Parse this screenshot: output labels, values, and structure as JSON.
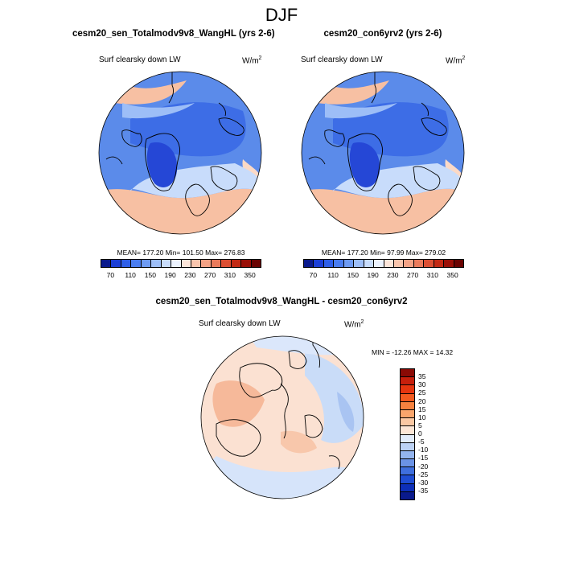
{
  "figure": {
    "title": "DJF"
  },
  "panels": [
    {
      "title": "cesm20_sen_Totalmodv9v8_WangHL (yrs 2-6)",
      "variable": "Surf clearsky down LW",
      "units": "W/m",
      "units_superscript": "2",
      "stats": "MEAN= 177.20  Min= 101.50  Max= 276.83",
      "colorbar_ticks": [
        "70",
        "110",
        "150",
        "190",
        "230",
        "270",
        "310",
        "350"
      ],
      "colorbar_colors": [
        "#0a1a8c",
        "#1c3fd6",
        "#2f5fe8",
        "#4a7df0",
        "#6e9bf3",
        "#9dbef7",
        "#c8dcfb",
        "#ecf3fe",
        "#fde6da",
        "#f9c5ad",
        "#f3a285",
        "#ea7b5c",
        "#dc4f33",
        "#c22914",
        "#9a0f07",
        "#6a0302"
      ]
    },
    {
      "title": "cesm20_con6yrv2 (yrs 2-6)",
      "variable": "Surf clearsky down LW",
      "units": "W/m",
      "units_superscript": "2",
      "stats": "MEAN= 177.20  Min=  97.99  Max= 279.02",
      "colorbar_ticks": [
        "70",
        "110",
        "150",
        "190",
        "230",
        "270",
        "310",
        "350"
      ],
      "colorbar_colors": [
        "#0a1a8c",
        "#1c3fd6",
        "#2f5fe8",
        "#4a7df0",
        "#6e9bf3",
        "#9dbef7",
        "#c8dcfb",
        "#ecf3fe",
        "#fde6da",
        "#f9c5ad",
        "#f3a285",
        "#ea7b5c",
        "#dc4f33",
        "#c22914",
        "#9a0f07",
        "#6a0302"
      ]
    },
    {
      "title": "cesm20_sen_Totalmodv9v8_WangHL - cesm20_con6yrv2",
      "variable": "Surf clearsky down LW",
      "units": "W/m",
      "units_superscript": "2",
      "stats": "MIN = -12.26 MAX =  14.32",
      "colorbar_ticks": [
        "35",
        "30",
        "25",
        "20",
        "15",
        "10",
        "5",
        "0",
        "-5",
        "-10",
        "-15",
        "-20",
        "-25",
        "-30",
        "-35"
      ],
      "colorbar_colors": [
        "#8a0a05",
        "#c61f0c",
        "#e5350f",
        "#f35a1f",
        "#f7823f",
        "#f9a56c",
        "#fbc8a3",
        "#fde6d6",
        "#e2ecfb",
        "#bcd2f5",
        "#93b4ee",
        "#6b93e6",
        "#3f6fde",
        "#1f4dd3",
        "#0d2fb8",
        "#0a1a8c"
      ]
    }
  ],
  "map_fields": {
    "left": {
      "base": "#5b8bea",
      "regions": [
        {
          "color": "#f7c0a3",
          "shape": "rim"
        },
        {
          "color": "#c8dcfb",
          "shape": "atlantic"
        },
        {
          "color": "#3d6de6",
          "shape": "arctic"
        },
        {
          "color": "#2547d6",
          "shape": "greenland"
        }
      ]
    },
    "right": {
      "base": "#5b8bea",
      "regions": [
        {
          "color": "#f7c0a3",
          "shape": "rim"
        },
        {
          "color": "#c8dcfb",
          "shape": "atlantic"
        },
        {
          "color": "#3d6de6",
          "shape": "arctic"
        },
        {
          "color": "#2547d6",
          "shape": "greenland"
        }
      ]
    },
    "diff": {
      "base": "#fbe1d2",
      "regions": [
        {
          "color": "#f6b99a",
          "shape": "pacific"
        },
        {
          "color": "#c9dcf8",
          "shape": "eurasia"
        },
        {
          "color": "#dbe7fb",
          "shape": "canada"
        }
      ]
    }
  }
}
